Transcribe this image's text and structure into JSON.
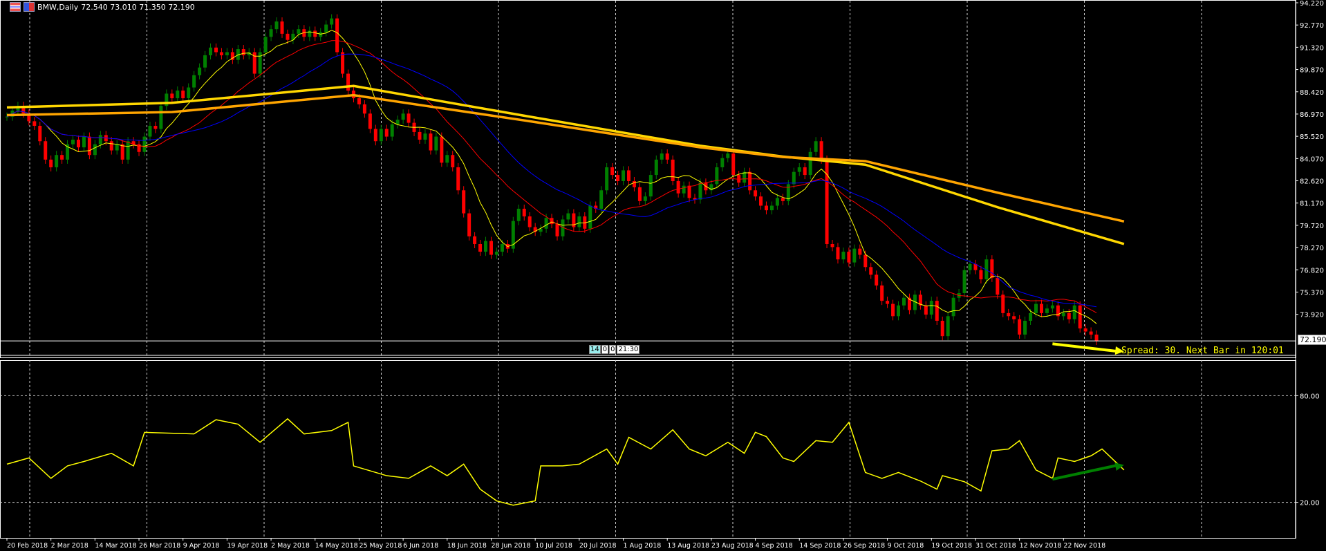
{
  "header": {
    "symbol": "BMW,Daily",
    "ohlc": "72.540 73.010 71.350 72.190",
    "icons": [
      "chart-window-icon",
      "indicator-icon"
    ]
  },
  "status": {
    "spread_text": "Spread: 30. Next Bar in 120:01",
    "time_parts": [
      "14",
      "0",
      "0",
      "21:30"
    ],
    "current_price": "72.190"
  },
  "colors": {
    "background": "#000000",
    "bull": "#008000",
    "bear": "#ff0000",
    "ma_fast": "#ffff00",
    "ma_mid": "#ff0000",
    "ma_slow": "#0000ff",
    "ma_long1": "#ffd700",
    "ma_long2": "#ffa500",
    "indicator": "#ffff00",
    "price_arrow": "#ffff00",
    "indicator_arrow": "#008000"
  },
  "chart_data": [
    {
      "type": "candlestick",
      "title": "BMW,Daily",
      "start_date": "2018-02-20",
      "ylim": [
        71.2,
        94.22
      ],
      "y_ticks": [
        "94.220",
        "92.770",
        "91.320",
        "89.870",
        "88.420",
        "86.970",
        "85.520",
        "84.070",
        "82.620",
        "81.170",
        "79.720",
        "78.270",
        "76.820",
        "75.370",
        "73.920"
      ],
      "x_ticks": [
        "20 Feb 2018",
        "2 Mar 2018",
        "14 Mar 2018",
        "26 Mar 2018",
        "9 Apr 2018",
        "19 Apr 2018",
        "2 May 2018",
        "14 May 2018",
        "25 May 2018",
        "6 Jun 2018",
        "18 Jun 2018",
        "28 Jun 2018",
        "10 Jul 2018",
        "20 Jul 2018",
        "1 Aug 2018",
        "13 Aug 2018",
        "23 Aug 2018",
        "4 Sep 2018",
        "14 Sep 2018",
        "26 Sep 2018",
        "9 Oct 2018",
        "19 Oct 2018",
        "31 Oct 2018",
        "12 Nov 2018",
        "22 Nov 2018"
      ],
      "closes": [
        86.8,
        87.2,
        87.5,
        87.0,
        86.5,
        86.2,
        85.2,
        84.0,
        83.5,
        84.3,
        84.0,
        85.0,
        85.3,
        84.8,
        85.5,
        84.3,
        85.0,
        85.6,
        85.2,
        84.6,
        85.0,
        84.0,
        85.2,
        85.0,
        84.5,
        85.5,
        86.2,
        86.0,
        87.5,
        88.3,
        88.0,
        88.5,
        88.0,
        88.7,
        89.5,
        90.0,
        90.8,
        91.3,
        91.0,
        90.8,
        91.0,
        90.5,
        91.2,
        90.8,
        91.0,
        89.6,
        91.0,
        92.0,
        92.5,
        93.0,
        92.2,
        91.8,
        92.2,
        92.5,
        92.0,
        92.4,
        92.0,
        92.3,
        92.8,
        93.2,
        91.0,
        89.6,
        88.5,
        88.0,
        87.6,
        87.0,
        86.0,
        85.2,
        86.0,
        85.5,
        86.3,
        86.6,
        87.0,
        86.4,
        85.8,
        85.3,
        85.7,
        84.6,
        85.5,
        83.8,
        84.3,
        83.5,
        82.0,
        80.5,
        79.0,
        78.5,
        78.0,
        78.7,
        77.8,
        78.0,
        78.5,
        78.2,
        80.0,
        80.8,
        80.3,
        79.6,
        79.3,
        79.5,
        80.2,
        79.8,
        79.0,
        80.1,
        80.5,
        79.6,
        80.3,
        79.5,
        81.0,
        80.8,
        82.0,
        83.5,
        83.0,
        82.6,
        83.3,
        82.6,
        82.2,
        81.3,
        81.6,
        83.0,
        84.0,
        84.4,
        84.0,
        82.6,
        81.8,
        82.3,
        81.5,
        81.4,
        82.5,
        82.0,
        82.4,
        83.5,
        84.1,
        84.4,
        83.0,
        82.5,
        83.2,
        82.0,
        81.6,
        81.0,
        80.7,
        81.0,
        81.5,
        81.3,
        82.4,
        83.2,
        83.5,
        83.0,
        84.5,
        85.2,
        84.0,
        78.5,
        78.3,
        77.5,
        78.0,
        77.3,
        78.2,
        77.8,
        77.0,
        76.5,
        75.8,
        74.8,
        74.6,
        73.8,
        74.5,
        75.0,
        74.2,
        75.2,
        74.5,
        73.9,
        74.8,
        73.5,
        72.5,
        73.8,
        75.0,
        75.3,
        76.8,
        77.2,
        76.8,
        76.2,
        77.5,
        76.3,
        75.2,
        74.0,
        73.8,
        73.6,
        72.6,
        73.5,
        74.0,
        74.6,
        74.0,
        74.3,
        74.5,
        73.8,
        74.0,
        73.6,
        74.5,
        73.0,
        72.8,
        72.6,
        72.19
      ],
      "moving_averages_computed": [
        {
          "period": 8,
          "color": "#ffff00"
        },
        {
          "period": 21,
          "color": "#ff0000"
        },
        {
          "period": 34,
          "color": "#0000ff"
        }
      ],
      "long_averages": [
        {
          "color": "#ffd700",
          "points": [
            [
              "20 Feb",
              87.4
            ],
            [
              "3 Apr",
              87.7
            ],
            [
              "18 May",
              88.8
            ],
            [
              "3 Jul",
              86.8
            ],
            [
              "15 Aug",
              84.9
            ],
            [
              "5 Sep",
              84.2
            ],
            [
              "26 Sep",
              83.67
            ],
            [
              "30 Oct",
              80.9
            ],
            [
              "30 Nov",
              78.5
            ]
          ]
        },
        {
          "color": "#ffa500",
          "points": [
            [
              "20 Feb",
              86.9
            ],
            [
              "3 Apr",
              87.1
            ],
            [
              "18 May",
              88.2
            ],
            [
              "3 Jul",
              86.5
            ],
            [
              "15 Aug",
              84.8
            ],
            [
              "5 Sep",
              84.17
            ],
            [
              "26 Sep",
              83.9
            ],
            [
              "30 Oct",
              81.85
            ],
            [
              "30 Nov",
              79.97
            ]
          ]
        }
      ],
      "price_arrow": {
        "from": [
          "13 Nov",
          72.0
        ],
        "to": [
          "30 Nov",
          71.5
        ]
      }
    },
    {
      "type": "line",
      "ylim": [
        0,
        100
      ],
      "levels": [
        "80.00",
        "20.00"
      ],
      "points": [
        [
          "20 Feb",
          41.5
        ],
        [
          "26 Feb",
          45
        ],
        [
          "2 Mar",
          33.5
        ],
        [
          "7 Mar",
          40.5
        ],
        [
          "12 Mar",
          43
        ],
        [
          "19 Mar",
          47.6
        ],
        [
          "23 Mar",
          40.5
        ],
        [
          "27 Mar",
          59.4
        ],
        [
          "9 Apr",
          58.5
        ],
        [
          "13 Apr",
          66.5
        ],
        [
          "19 Apr",
          64
        ],
        [
          "25 Apr",
          53.8
        ],
        [
          "2 May",
          67
        ],
        [
          "7 May",
          58.5
        ],
        [
          "14 May",
          60.4
        ],
        [
          "17 May",
          65
        ],
        [
          "18 May",
          40.5
        ],
        [
          "28 May",
          35
        ],
        [
          "1 Jun",
          33.5
        ],
        [
          "7 Jun",
          40.5
        ],
        [
          "12 Jun",
          35
        ],
        [
          "15 Jun",
          41.5
        ],
        [
          "20 Jun",
          27.4
        ],
        [
          "25 Jun",
          20.8
        ],
        [
          "28 Jun",
          18.4
        ],
        [
          "4 Jul",
          20.8
        ],
        [
          "5 Jul",
          40.5
        ],
        [
          "11 Jul",
          40.5
        ],
        [
          "16 Jul",
          41.5
        ],
        [
          "23 Jul",
          50
        ],
        [
          "25 Jul",
          41.5
        ],
        [
          "27 Jul",
          56.6
        ],
        [
          "2 Aug",
          50
        ],
        [
          "8 Aug",
          60.8
        ],
        [
          "13 Aug",
          50
        ],
        [
          "16 Aug",
          46.2
        ],
        [
          "22 Aug",
          53.8
        ],
        [
          "27 Aug",
          47.6
        ],
        [
          "29 Aug",
          59.4
        ],
        [
          "31 Aug",
          57
        ],
        [
          "5 Sep",
          45
        ],
        [
          "7 Sep",
          43
        ],
        [
          "13 Sep",
          54.7
        ],
        [
          "18 Sep",
          53.8
        ],
        [
          "21 Sep",
          65
        ],
        [
          "26 Sep",
          36.8
        ],
        [
          "1 Oct",
          33.5
        ],
        [
          "4 Oct",
          36.8
        ],
        [
          "10 Oct",
          32
        ],
        [
          "15 Oct",
          27.4
        ],
        [
          "16 Oct",
          35
        ],
        [
          "22 Oct",
          31.6
        ],
        [
          "25 Oct",
          26.4
        ],
        [
          "29 Oct",
          49
        ],
        [
          "1 Nov",
          50
        ],
        [
          "5 Nov",
          54.7
        ],
        [
          "8 Nov",
          38.2
        ],
        [
          "13 Nov",
          33.5
        ],
        [
          "14 Nov",
          45
        ],
        [
          "19 Nov",
          43
        ],
        [
          "22 Nov",
          46.2
        ],
        [
          "26 Nov",
          50
        ],
        [
          "30 Nov",
          38.2
        ]
      ],
      "arrow": {
        "from": [
          "13 Nov",
          33
        ],
        "to": [
          "30 Nov",
          41
        ]
      }
    }
  ]
}
